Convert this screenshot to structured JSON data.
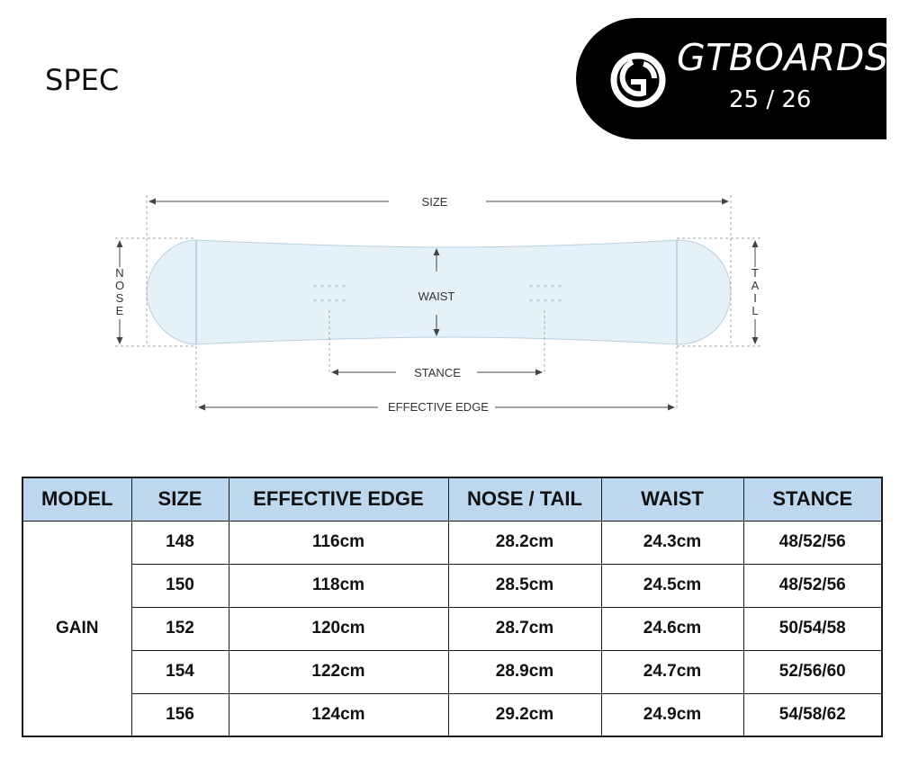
{
  "page": {
    "title": "SPEC"
  },
  "brand": {
    "name": "GTBOARDS",
    "season": "25 / 26",
    "logo_icon": "gtboards-logo-icon",
    "badge_color": "#000000"
  },
  "diagram": {
    "size_label": "SIZE",
    "nose_label": "NOSE",
    "tail_label": "TAIL",
    "waist_label": "WAIST",
    "stance_label": "STANCE",
    "effective_edge_label": "EFFECTIVE EDGE",
    "board_color": "#e4f1f9"
  },
  "table": {
    "header_color": "#bdd7ee",
    "columns": [
      "MODEL",
      "SIZE",
      "EFFECTIVE EDGE",
      "NOSE / TAIL",
      "WAIST",
      "STANCE"
    ],
    "model": "GAIN",
    "rows": [
      {
        "size": "148",
        "effective_edge": "116cm",
        "nose_tail": "28.2cm",
        "waist": "24.3cm",
        "stance": "48/52/56"
      },
      {
        "size": "150",
        "effective_edge": "118cm",
        "nose_tail": "28.5cm",
        "waist": "24.5cm",
        "stance": "48/52/56"
      },
      {
        "size": "152",
        "effective_edge": "120cm",
        "nose_tail": "28.7cm",
        "waist": "24.6cm",
        "stance": "50/54/58"
      },
      {
        "size": "154",
        "effective_edge": "122cm",
        "nose_tail": "28.9cm",
        "waist": "24.7cm",
        "stance": "52/56/60"
      },
      {
        "size": "156",
        "effective_edge": "124cm",
        "nose_tail": "29.2cm",
        "waist": "24.9cm",
        "stance": "54/58/62"
      }
    ]
  }
}
